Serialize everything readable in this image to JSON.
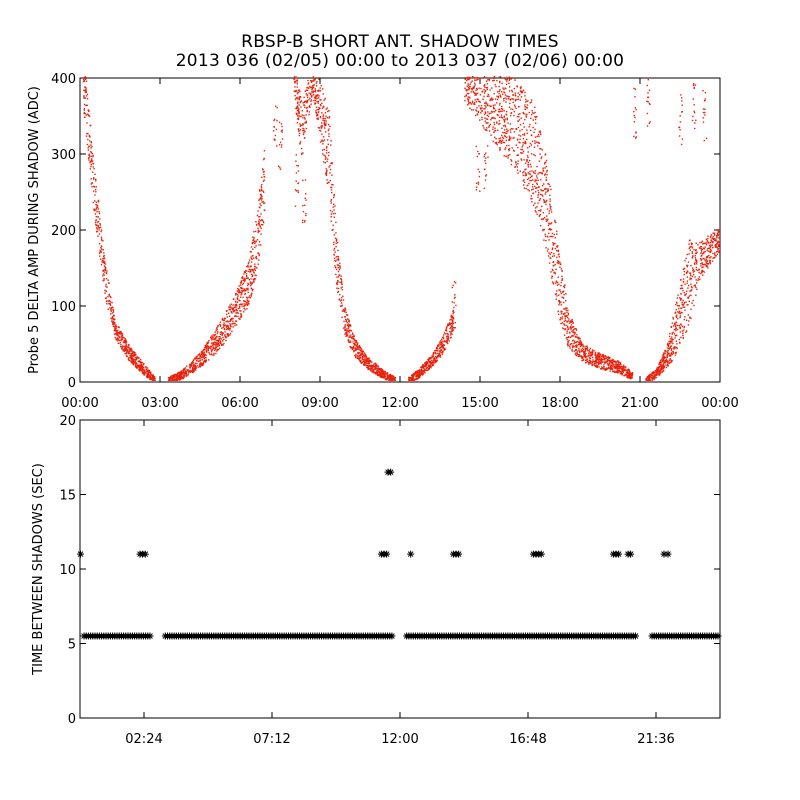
{
  "title": "RBSP-B SHORT ANT. SHADOW TIMES",
  "subtitle": "2013 036 (02/05) 00:00 to 2013 037 (02/06) 00:00",
  "chart_data": [
    {
      "type": "scatter",
      "name": "delta-amp",
      "ylabel": "Probe 5 DELTA AMP DURING SHADOW (ADC)",
      "xlabel": "",
      "xlim": [
        0,
        24
      ],
      "ylim": [
        0,
        400
      ],
      "xticks": [
        0,
        3,
        6,
        9,
        12,
        15,
        18,
        21,
        24
      ],
      "xtick_labels": [
        "00:00",
        "03:00",
        "06:00",
        "09:00",
        "12:00",
        "15:00",
        "18:00",
        "21:00",
        "00:00"
      ],
      "yticks": [
        0,
        100,
        200,
        300,
        400
      ],
      "ytick_labels": [
        "0",
        "100",
        "200",
        "300",
        "400"
      ],
      "color": "#e8220c",
      "bands": [
        {
          "x": [
            0.1,
            0.5,
            0.9,
            1.3,
            1.8,
            2.3,
            2.8
          ],
          "y": [
            400,
            260,
            140,
            70,
            40,
            20,
            3
          ],
          "spread": [
            40,
            35,
            25,
            12,
            10,
            8,
            4
          ]
        },
        {
          "x": [
            3.3,
            3.8,
            4.5,
            5.2,
            5.8,
            6.3,
            6.6,
            6.9
          ],
          "y": [
            3,
            10,
            30,
            60,
            95,
            130,
            180,
            270
          ],
          "spread": [
            4,
            6,
            10,
            18,
            22,
            30,
            40,
            50
          ]
        },
        {
          "x": [
            8.0,
            8.3,
            8.7,
            9.3,
            9.6,
            9.9,
            10.3,
            10.8,
            11.3,
            11.8
          ],
          "y": [
            400,
            330,
            400,
            310,
            160,
            80,
            45,
            25,
            12,
            3
          ],
          "spread": [
            20,
            40,
            20,
            60,
            35,
            20,
            12,
            8,
            6,
            4
          ]
        },
        {
          "x": [
            12.3,
            12.7,
            13.2,
            13.6,
            13.9,
            14.0
          ],
          "y": [
            3,
            12,
            30,
            50,
            75,
            85
          ],
          "spread": [
            4,
            6,
            8,
            12,
            15,
            15
          ]
        },
        {
          "x": [
            14.4,
            15.0,
            15.6,
            16.3,
            17.0,
            17.5,
            17.9,
            18.3,
            18.8,
            19.5,
            20.2,
            20.7
          ],
          "y": [
            400,
            380,
            360,
            340,
            300,
            230,
            140,
            70,
            40,
            28,
            20,
            8
          ],
          "spread": [
            30,
            40,
            50,
            60,
            70,
            60,
            50,
            25,
            12,
            10,
            8,
            5
          ]
        },
        {
          "x": [
            21.2,
            21.6,
            22.0,
            22.4,
            22.8,
            23.2,
            23.6,
            24.0
          ],
          "y": [
            3,
            12,
            35,
            80,
            130,
            160,
            175,
            190
          ],
          "spread": [
            4,
            6,
            15,
            40,
            60,
            25,
            20,
            15
          ]
        }
      ],
      "spikes": [
        {
          "x": [
            7.3,
            7.5,
            8.1,
            8.4,
            14.0,
            14.9,
            15.2,
            20.8,
            21.3,
            22.5,
            23.0,
            23.4
          ],
          "y": [
            380,
            350,
            300,
            270,
            140,
            320,
            320,
            390,
            400,
            380,
            395,
            385
          ]
        }
      ]
    },
    {
      "type": "scatter",
      "name": "time-between",
      "ylabel": "TIME BETWEEN SHADOWS (SEC)",
      "xlabel": "",
      "xlim": [
        0,
        24
      ],
      "ylim": [
        0,
        20
      ],
      "xticks": [
        2.4,
        7.2,
        12.0,
        16.8,
        21.6
      ],
      "xtick_labels": [
        "02:24",
        "07:12",
        "12:00",
        "16:48",
        "21:36"
      ],
      "yticks": [
        0,
        5,
        10,
        15,
        20
      ],
      "ytick_labels": [
        "0",
        "5",
        "10",
        "15",
        "20"
      ],
      "marker": "*",
      "color": "#000000",
      "baseline_value": 5.5,
      "baseline_segments": [
        [
          0.15,
          2.7
        ],
        [
          3.2,
          11.7
        ],
        [
          12.25,
          20.9
        ],
        [
          21.45,
          24.0
        ]
      ],
      "outliers_x": [
        0.02,
        2.25,
        2.35,
        2.45,
        11.3,
        11.4,
        11.5,
        11.55,
        11.65,
        12.4,
        14.0,
        14.1,
        14.2,
        17.0,
        17.1,
        17.2,
        17.3,
        20.0,
        20.1,
        20.2,
        20.55,
        20.65,
        21.9,
        22.05
      ],
      "outliers_y": [
        11,
        11,
        11,
        11,
        11,
        11,
        11,
        16.5,
        16.5,
        11,
        11,
        11,
        11,
        11,
        11,
        11,
        11,
        11,
        11,
        11,
        11,
        11,
        11,
        11
      ]
    }
  ]
}
